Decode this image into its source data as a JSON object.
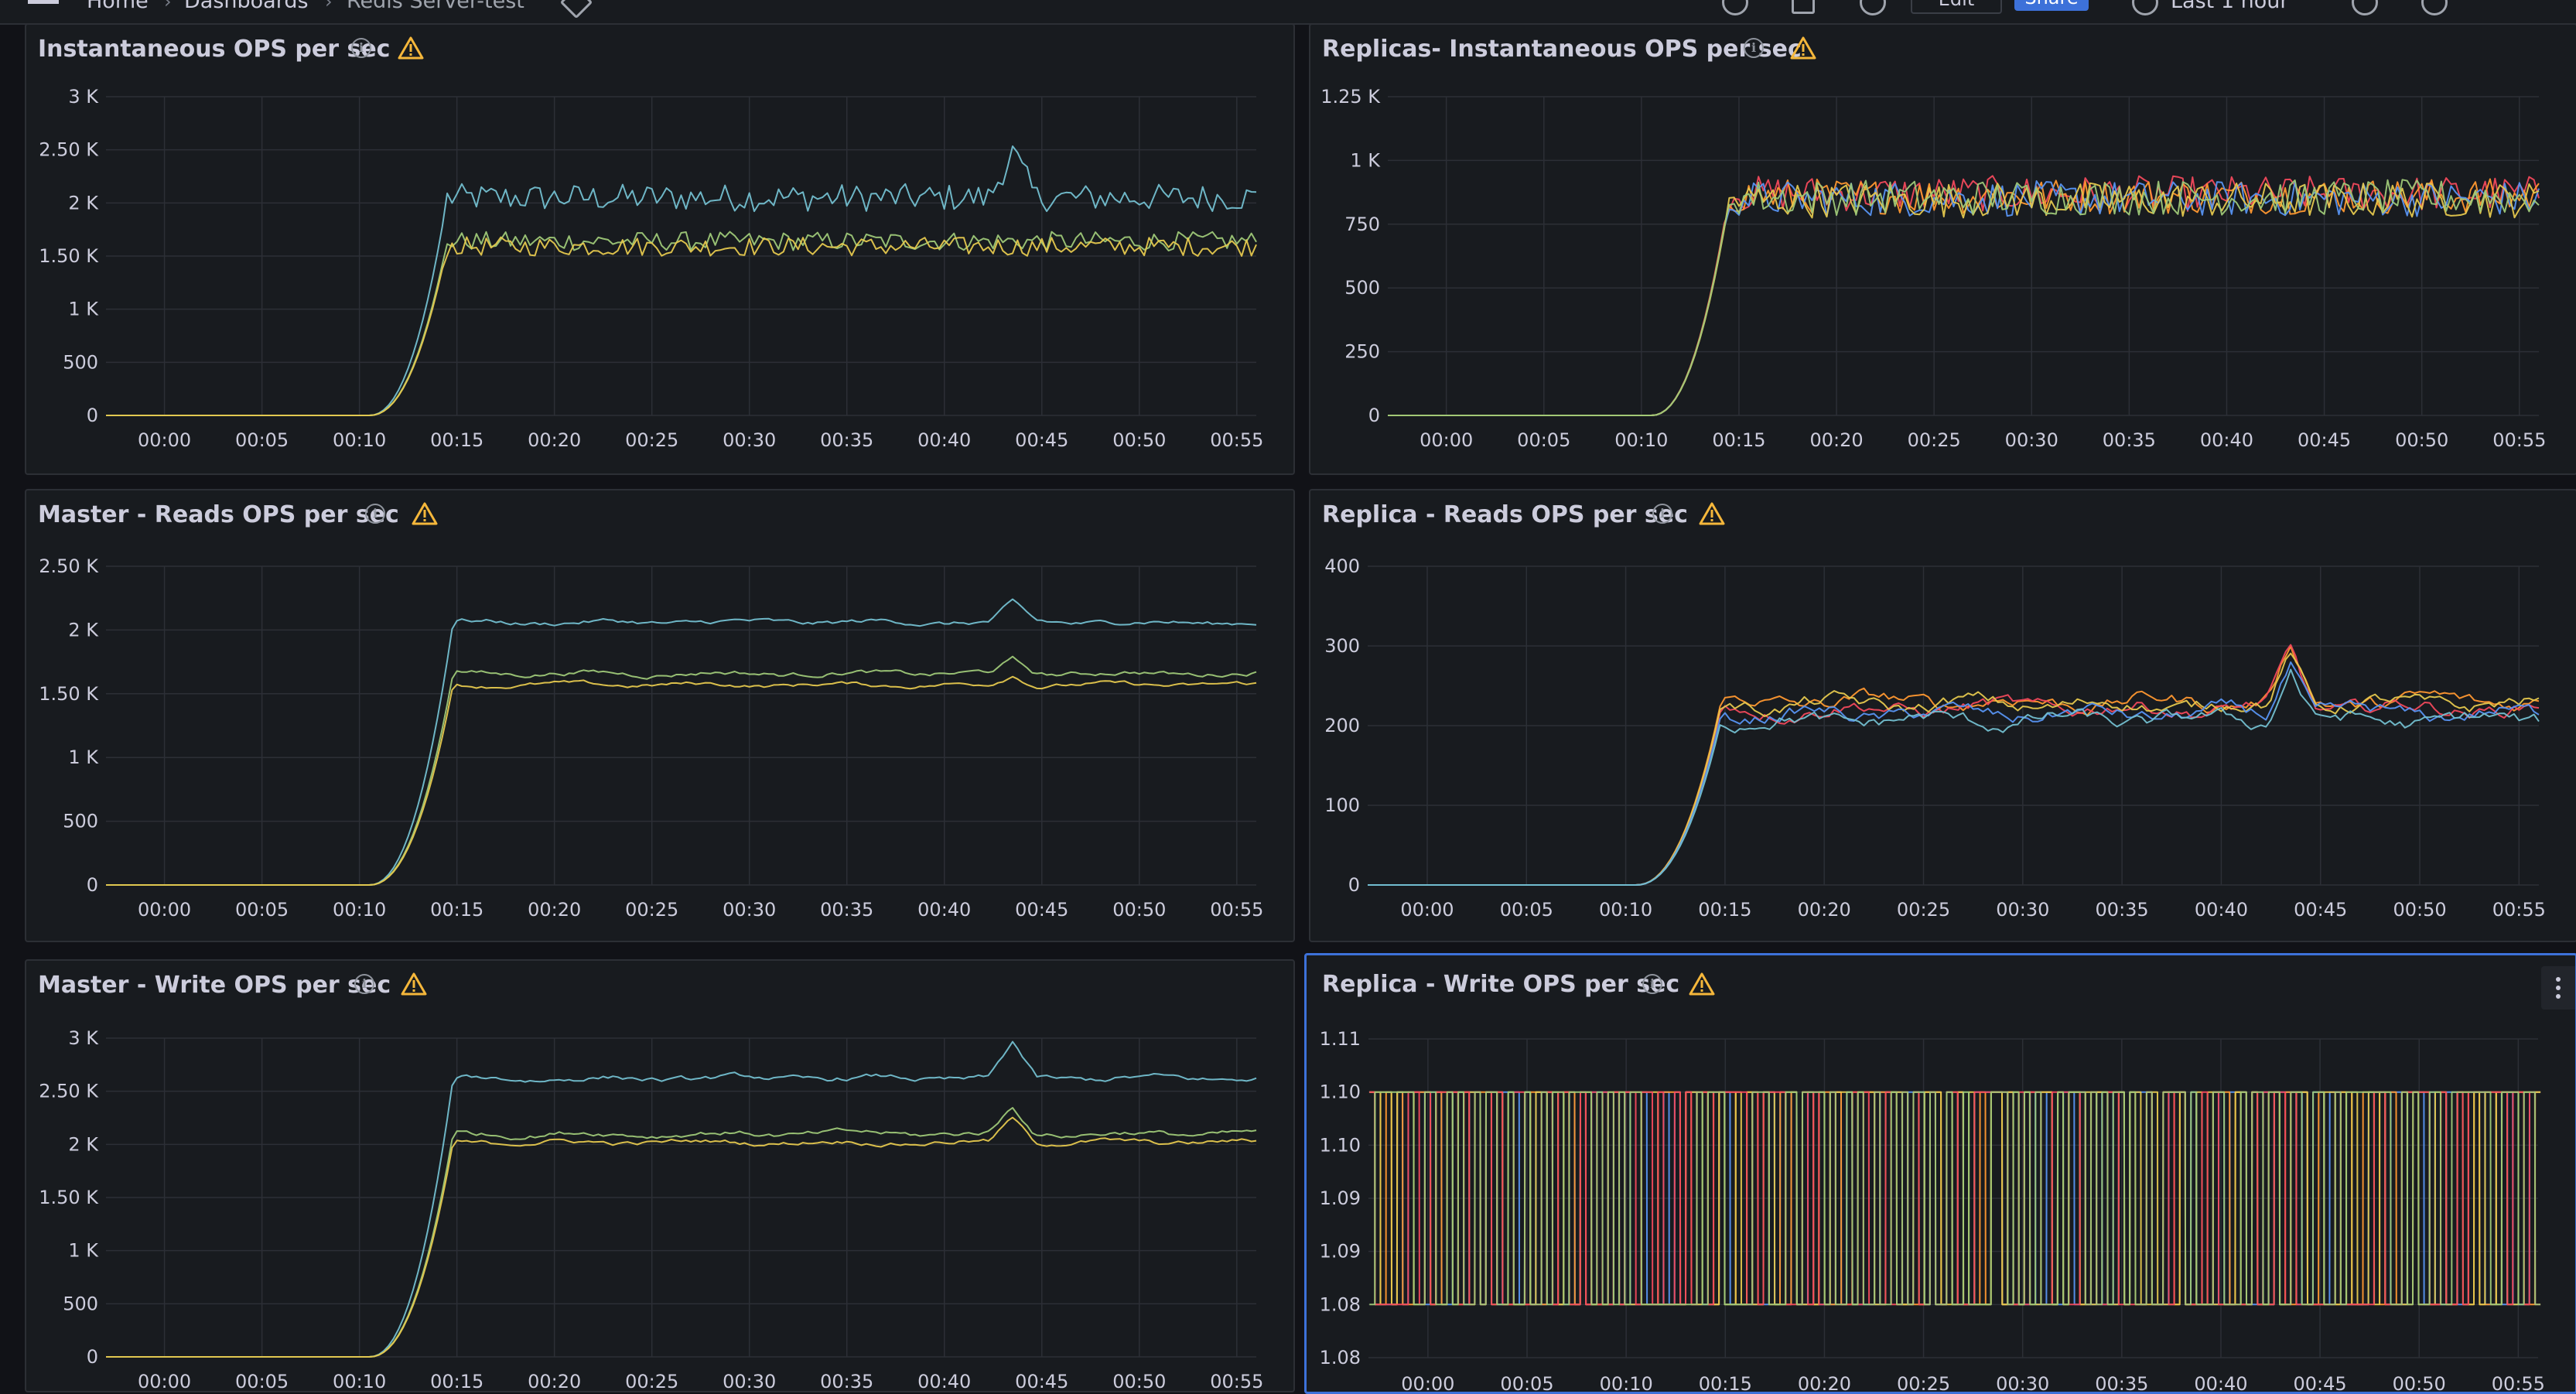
{
  "header": {
    "home": "Home",
    "dashboards": "Dashboards",
    "dashboard_title": "Redis Server-test",
    "edit_label": "Edit",
    "share_label": "Share",
    "time_range": "Last 1 hour"
  },
  "colors": {
    "cyan": "#73bfd0",
    "green": "#9ec878",
    "yellow": "#e5c84e",
    "red": "#f2495c",
    "blue": "#5794f2",
    "orange": "#ff9830",
    "purple": "#b877d9",
    "warning": "#f5b73b"
  },
  "time_ticks": [
    "00:00",
    "00:05",
    "00:10",
    "00:15",
    "00:20",
    "00:25",
    "00:30",
    "00:35",
    "00:40",
    "00:45",
    "00:50",
    "00:55"
  ],
  "chart_data": [
    {
      "type": "line",
      "title": "Instantaneous OPS per sec",
      "ylim": [
        0,
        3000
      ],
      "yticks": [
        0,
        500,
        1000,
        1500,
        2000,
        2500,
        3000
      ],
      "ytick_labels": [
        "0",
        "500",
        "1 K",
        "1.50 K",
        "2 K",
        "2.50 K",
        "3 K"
      ],
      "x_range_minutes": [
        -3,
        56
      ],
      "ramp_minutes": [
        10.5,
        14.5
      ],
      "noise": "high",
      "series": [
        {
          "color": "cyan",
          "level": 2050,
          "spread": 130,
          "peak_minute": 43.5,
          "peak_value": 2480
        },
        {
          "color": "green",
          "level": 1640,
          "spread": 90
        },
        {
          "color": "yellow",
          "level": 1590,
          "spread": 90
        }
      ]
    },
    {
      "type": "line",
      "title": "Replicas- Instantaneous OPS per sec",
      "ylim": [
        0,
        1250
      ],
      "yticks": [
        0,
        250,
        500,
        750,
        1000,
        1250
      ],
      "ytick_labels": [
        "0",
        "250",
        "500",
        "750",
        "1 K",
        "1.25 K"
      ],
      "x_range_minutes": [
        -3,
        56
      ],
      "ramp_minutes": [
        10.5,
        14.5
      ],
      "noise": "high",
      "series": [
        {
          "color": "red",
          "level": 870,
          "spread": 70
        },
        {
          "color": "orange",
          "level": 860,
          "spread": 70
        },
        {
          "color": "blue",
          "level": 850,
          "spread": 70
        },
        {
          "color": "yellow",
          "level": 845,
          "spread": 70
        },
        {
          "color": "green",
          "level": 855,
          "spread": 70
        }
      ]
    },
    {
      "type": "line",
      "title": "Master - Reads OPS per sec",
      "ylim": [
        0,
        2500
      ],
      "yticks": [
        0,
        500,
        1000,
        1500,
        2000,
        2500
      ],
      "ytick_labels": [
        "0",
        "500",
        "1 K",
        "1.50 K",
        "2 K",
        "2.50 K"
      ],
      "x_range_minutes": [
        -3,
        56
      ],
      "ramp_minutes": [
        10.5,
        14.8
      ],
      "noise": "low",
      "series": [
        {
          "color": "cyan",
          "level": 2060,
          "spread": 30,
          "peak_minute": 43.5,
          "peak_value": 2200
        },
        {
          "color": "green",
          "level": 1660,
          "spread": 30,
          "peak_minute": 43.5,
          "peak_value": 1760
        },
        {
          "color": "yellow",
          "level": 1570,
          "spread": 25,
          "peak_minute": 43.5,
          "peak_value": 1650
        }
      ]
    },
    {
      "type": "line",
      "title": "Replica - Reads OPS per sec",
      "ylim": [
        0,
        400
      ],
      "yticks": [
        0,
        100,
        200,
        300,
        400
      ],
      "ytick_labels": [
        "0",
        "100",
        "200",
        "300",
        "400"
      ],
      "x_range_minutes": [
        -3,
        56
      ],
      "ramp_minutes": [
        10.5,
        14.8
      ],
      "noise": "low",
      "series": [
        {
          "color": "orange",
          "level": 230,
          "spread": 14,
          "peak_minute": 43.5,
          "peak_value": 300
        },
        {
          "color": "red",
          "level": 222,
          "spread": 14,
          "peak_minute": 43.5,
          "peak_value": 290
        },
        {
          "color": "yellow",
          "level": 226,
          "spread": 14,
          "peak_minute": 43.5,
          "peak_value": 295
        },
        {
          "color": "blue",
          "level": 214,
          "spread": 14,
          "peak_minute": 43.5,
          "peak_value": 280
        },
        {
          "color": "cyan",
          "level": 206,
          "spread": 14,
          "peak_minute": 43.5,
          "peak_value": 275
        }
      ]
    },
    {
      "type": "line",
      "title": "Master - Write OPS per sec",
      "ylim": [
        0,
        3000
      ],
      "yticks": [
        0,
        500,
        1000,
        1500,
        2000,
        2500,
        3000
      ],
      "ytick_labels": [
        "0",
        "500",
        "1 K",
        "1.50 K",
        "2 K",
        "2.50 K",
        "3 K"
      ],
      "x_range_minutes": [
        -3,
        56
      ],
      "ramp_minutes": [
        10.5,
        14.8
      ],
      "noise": "low",
      "series": [
        {
          "color": "cyan",
          "level": 2620,
          "spread": 40,
          "peak_minute": 43.5,
          "peak_value": 2950
        },
        {
          "color": "green",
          "level": 2100,
          "spread": 40,
          "peak_minute": 43.5,
          "peak_value": 2350
        },
        {
          "color": "yellow",
          "level": 2020,
          "spread": 35,
          "peak_minute": 43.5,
          "peak_value": 2250
        }
      ]
    },
    {
      "type": "line",
      "title": "Replica - Write OPS per sec",
      "ylim": [
        1.08,
        1.11
      ],
      "yticks": [
        1.08,
        1.085,
        1.09,
        1.095,
        1.1,
        1.105,
        1.11
      ],
      "ytick_labels": [
        "1.08",
        "1.08",
        "1.09",
        "1.09",
        "1.10",
        "1.10",
        "1.11"
      ],
      "x_range_minutes": [
        -3,
        56
      ],
      "noise": "square",
      "square_low": 1.085,
      "square_high": 1.105,
      "series": [
        {
          "color": "blue"
        },
        {
          "color": "orange"
        },
        {
          "color": "yellow"
        },
        {
          "color": "red"
        },
        {
          "color": "green"
        }
      ]
    }
  ]
}
